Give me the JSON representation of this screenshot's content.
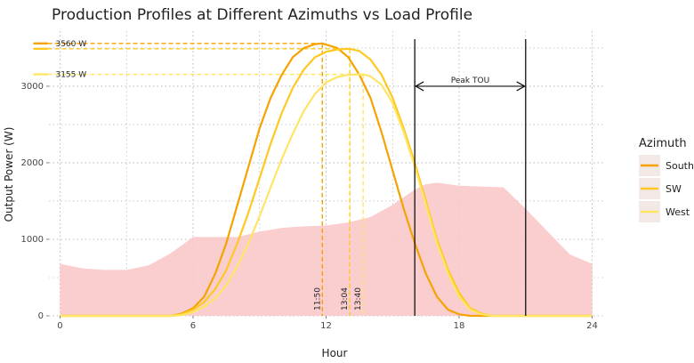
{
  "chart_data": {
    "type": "line",
    "title": "Production Profiles at Different Azimuths vs Load Profile",
    "xlabel": "Hour",
    "ylabel": "Output Power (W)",
    "xlim": [
      -0.5,
      24.5
    ],
    "ylim": [
      0,
      3720
    ],
    "x_ticks": [
      0,
      6,
      12,
      18,
      24
    ],
    "y_ticks": [
      0,
      1000,
      2000,
      3000
    ],
    "grid": true,
    "legend": {
      "title": "Azimuth",
      "position": "right"
    },
    "colors": {
      "South": "#F5A300",
      "SW": "#FFC822",
      "West": "#FFE566",
      "load": "#F9C9C9",
      "grid": "#AAAAAA",
      "peak": "#111111"
    },
    "load_profile": {
      "x": [
        0,
        1,
        2,
        3,
        4,
        5,
        6,
        7,
        8,
        9,
        10,
        11,
        12,
        13,
        14,
        15,
        16,
        16.5,
        17,
        18,
        19,
        20,
        21,
        22,
        23,
        24
      ],
      "y": [
        680,
        620,
        600,
        600,
        660,
        820,
        1030,
        1030,
        1030,
        1100,
        1150,
        1170,
        1180,
        1220,
        1290,
        1450,
        1650,
        1720,
        1740,
        1700,
        1690,
        1680,
        1400,
        1100,
        800,
        680
      ]
    },
    "series": [
      {
        "name": "South",
        "x": [
          0,
          5,
          5.5,
          6,
          6.5,
          7,
          7.5,
          8,
          8.5,
          9,
          9.5,
          10,
          10.5,
          11,
          11.5,
          11.83,
          12.5,
          13,
          13.5,
          14,
          14.5,
          15,
          15.5,
          16,
          16.5,
          17,
          17.5,
          18,
          18.5,
          19,
          24
        ],
        "y": [
          0,
          0,
          30,
          100,
          250,
          550,
          950,
          1450,
          1950,
          2450,
          2850,
          3150,
          3380,
          3500,
          3550,
          3560,
          3500,
          3380,
          3150,
          2850,
          2400,
          1900,
          1400,
          950,
          550,
          250,
          80,
          20,
          0,
          0,
          0
        ]
      },
      {
        "name": "SW",
        "x": [
          0,
          5,
          5.5,
          6,
          6.5,
          7,
          7.5,
          8,
          8.5,
          9,
          9.5,
          10,
          10.5,
          11,
          11.5,
          12,
          12.5,
          13.07,
          13.5,
          14,
          14.5,
          15,
          15.5,
          16,
          16.5,
          17,
          17.5,
          18,
          18.5,
          19,
          19.5,
          24
        ],
        "y": [
          0,
          0,
          20,
          80,
          180,
          350,
          600,
          950,
          1350,
          1800,
          2250,
          2650,
          2980,
          3220,
          3380,
          3450,
          3480,
          3490,
          3460,
          3350,
          3150,
          2850,
          2450,
          2000,
          1500,
          1000,
          600,
          300,
          100,
          30,
          0,
          0
        ]
      },
      {
        "name": "West",
        "x": [
          0,
          5,
          5.5,
          6,
          6.5,
          7,
          7.5,
          8,
          8.5,
          9,
          9.5,
          10,
          10.5,
          11,
          11.5,
          12,
          12.5,
          13,
          13.67,
          14,
          14.5,
          15,
          15.5,
          16,
          16.5,
          17,
          17.5,
          18,
          18.5,
          19,
          19.5,
          24
        ],
        "y": [
          0,
          0,
          10,
          50,
          120,
          230,
          400,
          650,
          950,
          1300,
          1680,
          2050,
          2380,
          2680,
          2900,
          3050,
          3120,
          3150,
          3155,
          3130,
          3020,
          2780,
          2400,
          1950,
          1450,
          950,
          550,
          250,
          80,
          20,
          0,
          0
        ]
      }
    ],
    "reference_lines": {
      "horizontal": [
        {
          "series": "South",
          "y": 3560,
          "x_end": 11.83,
          "label": "3560 W"
        },
        {
          "series": "SW",
          "y": 3490,
          "x_end": 13.07,
          "label": ""
        },
        {
          "series": "West",
          "y": 3155,
          "x_end": 13.67,
          "label": "3155 W"
        }
      ],
      "vertical": [
        {
          "series": "South",
          "x": 11.83,
          "label": "11:50"
        },
        {
          "series": "SW",
          "x": 13.07,
          "label": "13:04"
        },
        {
          "series": "West",
          "x": 13.67,
          "label": "13:40"
        }
      ]
    },
    "annotations": {
      "peak_tou": {
        "label": "Peak TOU",
        "x_start": 16,
        "x_end": 21,
        "y": 3000
      }
    }
  }
}
